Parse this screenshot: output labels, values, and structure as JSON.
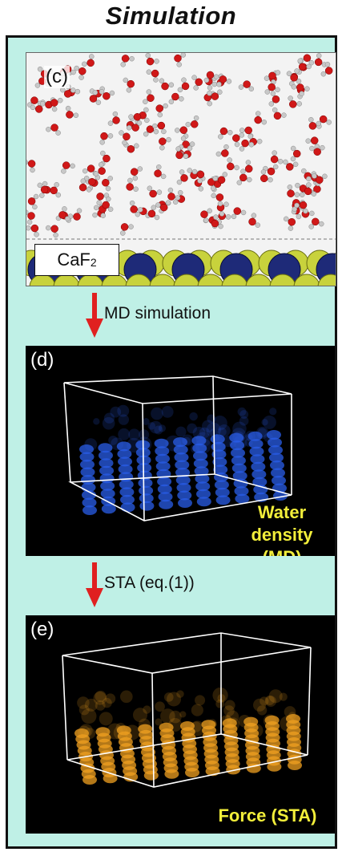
{
  "title": "Simulation",
  "panel_c": {
    "label": "(c)",
    "substrate_prefix": "CaF",
    "substrate_subscript": "2"
  },
  "arrow_1": {
    "label": "MD simulation"
  },
  "panel_d": {
    "label": "(d)",
    "caption_line1": "Water",
    "caption_line2": "density (MD)"
  },
  "arrow_2": {
    "label": "STA (eq.(1))"
  },
  "panel_e": {
    "label": "(e)",
    "caption": "Force (STA)"
  },
  "colors": {
    "background": "#bff0e6",
    "arrow": "#e02020",
    "caption": "#f2ee3a",
    "oxygen": "#d01818",
    "hydrogen": "#c8c8c8",
    "calcium": "#1e2a78",
    "fluorine": "#c8d23c",
    "water_density": "#2a5ee8",
    "force": "#f0a020"
  }
}
